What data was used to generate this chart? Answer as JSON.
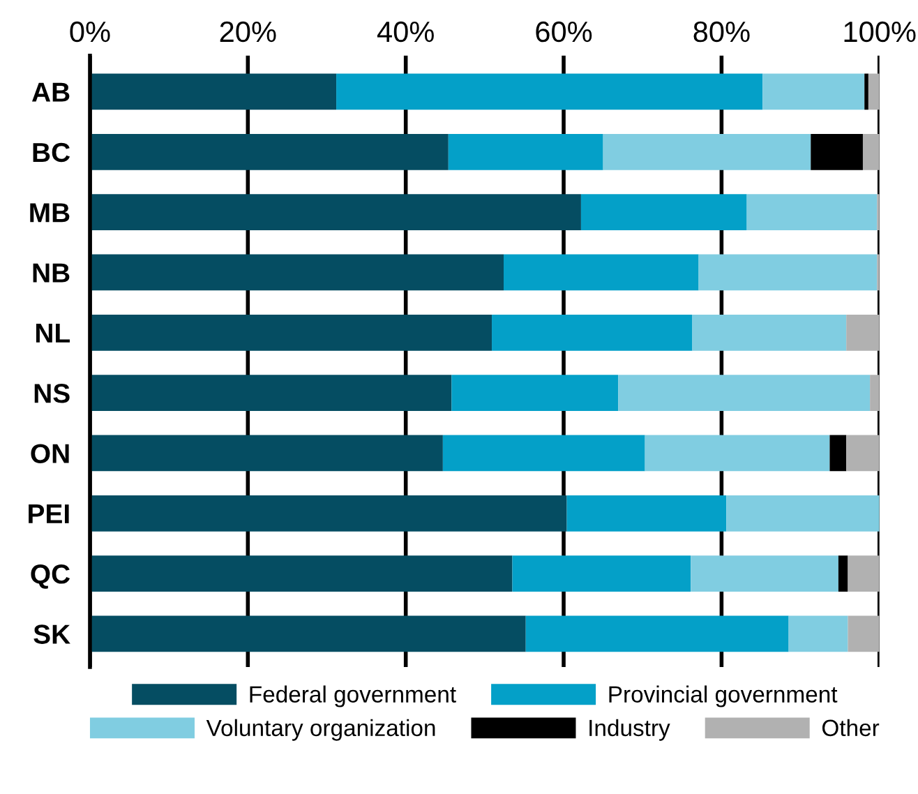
{
  "chart_data": {
    "type": "bar",
    "orientation": "horizontal",
    "stacked": true,
    "categories": [
      "AB",
      "BC",
      "MB",
      "NB",
      "NL",
      "NS",
      "ON",
      "PEI",
      "QC",
      "SK"
    ],
    "series": [
      {
        "name": "Federal government",
        "color": "#054d62",
        "values": [
          31.2,
          45.4,
          62.2,
          52.4,
          50.9,
          45.8,
          44.7,
          60.4,
          53.5,
          55.2
        ]
      },
      {
        "name": "Provincial government",
        "color": "#04a0c8",
        "values": [
          54.0,
          19.6,
          21.0,
          24.7,
          25.4,
          21.1,
          25.6,
          20.2,
          22.6,
          33.3
        ]
      },
      {
        "name": "Voluntary organization",
        "color": "#80cde1",
        "values": [
          12.9,
          26.3,
          16.5,
          22.6,
          19.5,
          31.9,
          23.4,
          19.4,
          18.7,
          7.5
        ]
      },
      {
        "name": "Industry",
        "color": "#000000",
        "values": [
          0.5,
          6.6,
          0,
          0,
          0,
          0,
          2.1,
          0,
          1.2,
          0
        ]
      },
      {
        "name": "Other",
        "color": "#b1b1b1",
        "values": [
          1.4,
          2.1,
          0.3,
          0.3,
          4.2,
          1.2,
          4.2,
          0,
          4.0,
          4.0
        ]
      }
    ],
    "xlim": [
      0,
      100
    ],
    "xticks": [
      {
        "value": 0,
        "label": "0%"
      },
      {
        "value": 20,
        "label": "20%"
      },
      {
        "value": 40,
        "label": "40%"
      },
      {
        "value": 60,
        "label": "60%"
      },
      {
        "value": 80,
        "label": "80%"
      },
      {
        "value": 100,
        "label": "100%"
      }
    ],
    "grid": "x",
    "legend": "bottom"
  }
}
